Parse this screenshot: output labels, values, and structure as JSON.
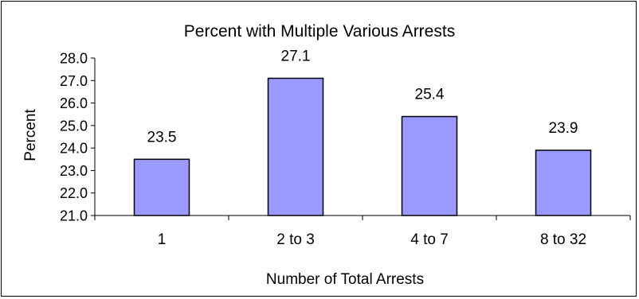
{
  "chart_data": {
    "type": "bar",
    "title": "Percent with Multiple Various Arrests",
    "xlabel": "Number of Total Arrests",
    "ylabel": "Percent",
    "categories": [
      "1",
      "2 to 3",
      "4 to 7",
      "8 to 32"
    ],
    "values": [
      23.5,
      27.1,
      25.4,
      23.9
    ],
    "data_labels": [
      "23.5",
      "27.1",
      "25.4",
      "23.9"
    ],
    "yticks": [
      "21.0",
      "22.0",
      "23.0",
      "24.0",
      "25.0",
      "26.0",
      "27.0",
      "28.0"
    ],
    "ylim": [
      21,
      28
    ],
    "grid": false,
    "legend": "none",
    "bar_color": "#9999ff",
    "bar_edge_color": "#000000"
  }
}
